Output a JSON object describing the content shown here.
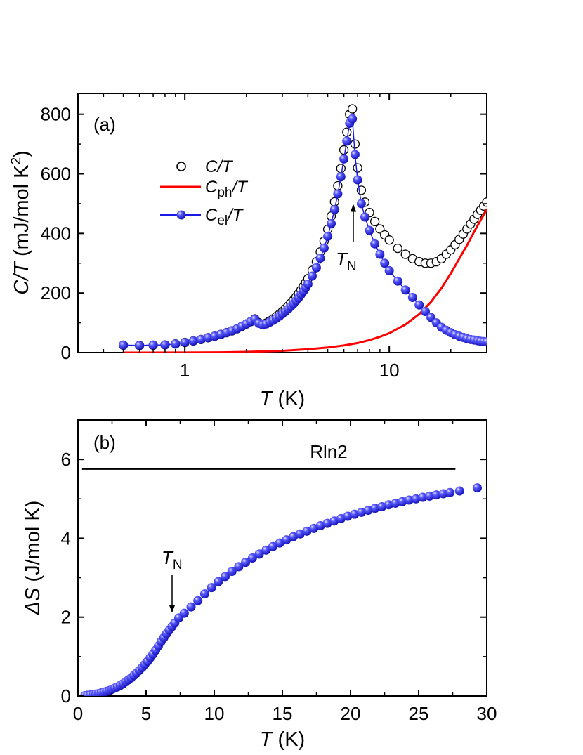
{
  "chart_data": [
    {
      "panel": "(a)",
      "type": "scatter",
      "x_scale": "log",
      "xlim": [
        0.3,
        30
      ],
      "ylim": [
        0,
        870
      ],
      "x_ticks": [
        1,
        10
      ],
      "x_tick_labels": [
        "1",
        "10"
      ],
      "y_ticks": [
        0,
        200,
        400,
        600,
        800
      ],
      "y_tick_labels": [
        "0",
        "200",
        "400",
        "600",
        "800"
      ],
      "xlabel": {
        "main": "T",
        "unit": " (K)"
      },
      "ylabel": {
        "main": "C/T",
        "unit": " (mJ/mol K",
        "sup": "2",
        "close": ")"
      },
      "legend_position": "upper-left",
      "series": [
        {
          "name": "C/T",
          "legend": {
            "base": "C/T",
            "sub": "",
            "tail": ""
          },
          "style": "open-circle",
          "color": "#000000",
          "x": [
            0.5,
            0.6,
            0.7,
            0.8,
            0.9,
            1.0,
            1.1,
            1.2,
            1.3,
            1.4,
            1.5,
            1.6,
            1.7,
            1.8,
            1.9,
            2.0,
            2.1,
            2.2,
            2.3,
            2.4,
            2.5,
            2.6,
            2.7,
            2.8,
            2.9,
            3.0,
            3.1,
            3.2,
            3.3,
            3.4,
            3.5,
            3.6,
            3.7,
            3.8,
            3.9,
            4.0,
            4.2,
            4.4,
            4.6,
            4.8,
            5.0,
            5.2,
            5.4,
            5.6,
            5.8,
            6.0,
            6.2,
            6.4,
            6.6,
            6.8,
            7.0,
            7.3,
            7.6,
            8.0,
            8.5,
            9.0,
            9.5,
            10,
            11,
            12,
            13,
            14,
            15,
            16,
            17,
            18,
            19,
            20,
            21,
            22,
            23,
            24,
            25,
            26,
            27,
            28,
            29,
            30
          ],
          "y": [
            25,
            24,
            25,
            26,
            29,
            34,
            39,
            44,
            50,
            55,
            61,
            67,
            73,
            80,
            88,
            96,
            104,
            113,
            100,
            95,
            99,
            106,
            113,
            121,
            129,
            138,
            147,
            156,
            166,
            176,
            187,
            198,
            210,
            222,
            235,
            248,
            276,
            305,
            338,
            374,
            414,
            458,
            506,
            560,
            618,
            680,
            740,
            800,
            818,
            700,
            620,
            545,
            505,
            470,
            440,
            415,
            395,
            378,
            350,
            330,
            315,
            305,
            300,
            300,
            305,
            315,
            330,
            345,
            362,
            380,
            398,
            415,
            432,
            448,
            464,
            478,
            492,
            505
          ]
        },
        {
          "name": "C_ph/T",
          "legend": {
            "base": "C",
            "sub": "ph",
            "tail": "/T"
          },
          "style": "line",
          "color": "#ff0000",
          "x": [
            0.5,
            0.7,
            1.0,
            1.5,
            2.0,
            3.0,
            4.0,
            5.0,
            6.0,
            7.0,
            8.0,
            9.0,
            10,
            12,
            14,
            16,
            18,
            20,
            22,
            24,
            26,
            28,
            30
          ],
          "y": [
            0,
            0,
            0.3,
            1,
            2.4,
            6,
            11,
            17,
            24,
            32,
            42,
            53,
            65,
            94,
            129,
            170,
            216,
            266,
            315,
            360,
            405,
            445,
            480
          ]
        },
        {
          "name": "C_el/T",
          "legend": {
            "base": "C",
            "sub": "el",
            "tail": "/T"
          },
          "style": "filled-circle-line",
          "color": "#1a1ae6",
          "x": [
            0.5,
            0.6,
            0.7,
            0.8,
            0.9,
            1.0,
            1.1,
            1.2,
            1.3,
            1.4,
            1.5,
            1.6,
            1.7,
            1.8,
            1.9,
            2.0,
            2.1,
            2.2,
            2.3,
            2.4,
            2.5,
            2.6,
            2.7,
            2.8,
            2.9,
            3.0,
            3.1,
            3.2,
            3.3,
            3.4,
            3.5,
            3.6,
            3.7,
            3.8,
            3.9,
            4.0,
            4.2,
            4.4,
            4.6,
            4.8,
            5.0,
            5.2,
            5.4,
            5.6,
            5.8,
            6.0,
            6.2,
            6.4,
            6.6,
            6.8,
            7.0,
            7.3,
            7.6,
            8.0,
            8.5,
            9.0,
            9.5,
            10,
            11,
            12,
            13,
            14,
            15,
            16,
            17,
            18,
            19,
            20,
            21,
            22,
            23,
            24,
            25,
            26,
            27,
            28,
            29,
            30
          ],
          "y": [
            25,
            24,
            25,
            26,
            29,
            34,
            39,
            44,
            50,
            55,
            61,
            67,
            73,
            80,
            88,
            96,
            104,
            112,
            98,
            93,
            96,
            102,
            108,
            115,
            122,
            130,
            138,
            146,
            155,
            164,
            174,
            184,
            195,
            206,
            218,
            230,
            257,
            285,
            317,
            351,
            390,
            433,
            480,
            533,
            590,
            650,
            710,
            770,
            785,
            665,
            580,
            500,
            455,
            410,
            365,
            330,
            300,
            275,
            240,
            210,
            185,
            160,
            138,
            118,
            100,
            85,
            75,
            67,
            60,
            55,
            51,
            47,
            44,
            42,
            40,
            38,
            37,
            36
          ]
        }
      ],
      "annotations": [
        {
          "base": "T",
          "sub": "N",
          "x": 6.6,
          "y": 540,
          "arrow": "up"
        }
      ]
    },
    {
      "panel": "(b)",
      "type": "scatter",
      "x_scale": "linear",
      "xlim": [
        0,
        30
      ],
      "ylim": [
        0,
        7
      ],
      "x_ticks": [
        0,
        5,
        10,
        15,
        20,
        25,
        30
      ],
      "x_tick_labels": [
        "0",
        "5",
        "10",
        "15",
        "20",
        "25",
        "30"
      ],
      "y_ticks": [
        0,
        2,
        4,
        6
      ],
      "y_tick_labels": [
        "0",
        "2",
        "4",
        "6"
      ],
      "xlabel": {
        "main": "T",
        "unit": " (K)"
      },
      "ylabel": {
        "main": "ΔS",
        "unit": " (J/mol K)"
      },
      "reference_line": {
        "label": "Rln2",
        "y": 5.76,
        "x_range": [
          0.3,
          27.7
        ],
        "color": "#000000"
      },
      "series": [
        {
          "name": "ΔS",
          "style": "filled-circle",
          "color": "#1a1ae6",
          "x": [
            0.5,
            0.7,
            0.9,
            1.1,
            1.3,
            1.5,
            1.7,
            1.9,
            2.1,
            2.3,
            2.5,
            2.7,
            2.9,
            3.1,
            3.3,
            3.5,
            3.7,
            3.9,
            4.1,
            4.3,
            4.5,
            4.7,
            4.9,
            5.1,
            5.3,
            5.5,
            5.7,
            5.9,
            6.1,
            6.3,
            6.5,
            6.7,
            6.9,
            7.1,
            7.4,
            7.8,
            8.3,
            8.8,
            9.3,
            9.8,
            10.3,
            10.8,
            11.3,
            11.8,
            12.3,
            12.8,
            13.3,
            13.8,
            14.3,
            14.8,
            15.3,
            15.8,
            16.3,
            16.8,
            17.3,
            17.8,
            18.3,
            18.8,
            19.3,
            19.8,
            20.3,
            20.8,
            21.3,
            21.8,
            22.3,
            22.8,
            23.3,
            23.8,
            24.3,
            24.8,
            25.3,
            25.8,
            26.3,
            26.8,
            27.3,
            28.0,
            29.3
          ],
          "y": [
            0.01,
            0.02,
            0.03,
            0.04,
            0.05,
            0.06,
            0.08,
            0.1,
            0.12,
            0.14,
            0.17,
            0.2,
            0.23,
            0.27,
            0.31,
            0.36,
            0.41,
            0.46,
            0.52,
            0.58,
            0.65,
            0.72,
            0.8,
            0.88,
            0.97,
            1.06,
            1.16,
            1.27,
            1.38,
            1.48,
            1.58,
            1.67,
            1.76,
            1.85,
            1.98,
            2.1,
            2.26,
            2.42,
            2.59,
            2.75,
            2.9,
            3.03,
            3.16,
            3.28,
            3.39,
            3.5,
            3.6,
            3.7,
            3.79,
            3.88,
            3.96,
            4.04,
            4.11,
            4.18,
            4.25,
            4.32,
            4.38,
            4.44,
            4.5,
            4.56,
            4.61,
            4.66,
            4.71,
            4.76,
            4.8,
            4.85,
            4.89,
            4.93,
            4.97,
            5.0,
            5.04,
            5.07,
            5.1,
            5.13,
            5.16,
            5.2,
            5.28
          ]
        }
      ],
      "annotations": [
        {
          "base": "T",
          "sub": "N",
          "x": 7.0,
          "y": 1.85,
          "arrow": "down"
        }
      ]
    }
  ]
}
